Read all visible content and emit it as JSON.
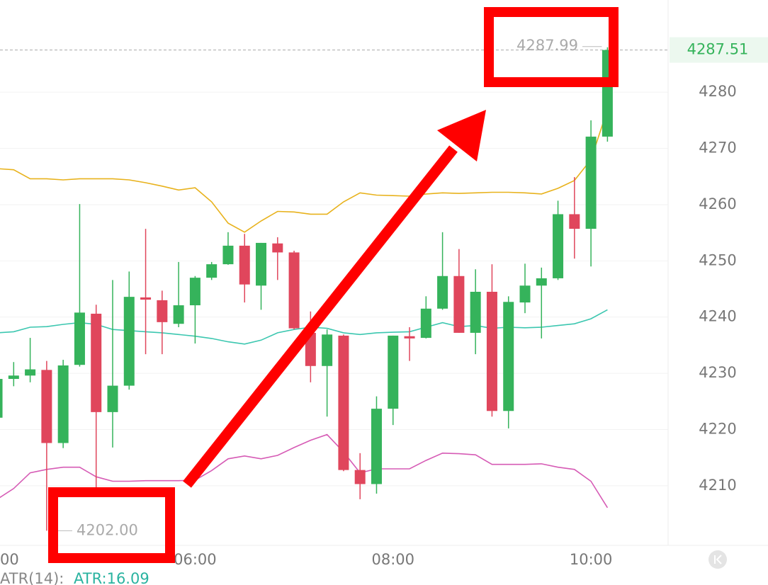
{
  "chart_data": {
    "type": "candlestick",
    "categories": [
      "00",
      null,
      null,
      null,
      null,
      null,
      null,
      null,
      null,
      null,
      null,
      null,
      "06:00",
      null,
      null,
      null,
      null,
      null,
      null,
      null,
      null,
      null,
      null,
      null,
      "08:00",
      null,
      null,
      null,
      null,
      null,
      null,
      null,
      null,
      null,
      null,
      null,
      "10:00",
      null
    ],
    "open": [
      4222.1,
      4229.0,
      4229.6,
      4230.6,
      4217.6,
      4231.5,
      4240.6,
      4223.1,
      4227.8,
      4243.5,
      4243.0,
      4238.8,
      4242.1,
      4247.0,
      4249.4,
      4252.7,
      4245.6,
      4253.1,
      4251.5,
      4237.2,
      4231.3,
      4236.7,
      4212.8,
      4210.3,
      4223.7,
      4236.6,
      4236.3,
      4241.5,
      4247.3,
      4237.2,
      4244.5,
      4223.3,
      4242.6,
      4245.6,
      4246.9,
      4258.3,
      4255.7,
      4272.1
    ],
    "high": [
      4230.5,
      4232.0,
      4236.3,
      4232.2,
      4232.4,
      4260.1,
      4242.2,
      4246.6,
      4248.1,
      4255.7,
      4244.7,
      4249.8,
      4247.3,
      4249.8,
      4255.1,
      4254.8,
      4253.2,
      4254.2,
      4251.8,
      4241.0,
      4237.8,
      4236.9,
      4215.8,
      4225.9,
      4236.7,
      4238.2,
      4243.7,
      4255.1,
      4252.1,
      4248.5,
      4249.4,
      4243.7,
      4249.5,
      4248.8,
      4260.7,
      4264.9,
      4275.0,
      4287.99
    ],
    "low": [
      4221.5,
      4227.7,
      4228.4,
      4202.0,
      4216.7,
      4231.2,
      4209.5,
      4216.8,
      4227.1,
      4233.4,
      4233.4,
      4238.2,
      4235.3,
      4246.6,
      4249.3,
      4242.6,
      4241.3,
      4246.6,
      4237.8,
      4228.4,
      4222.3,
      4212.6,
      4207.6,
      4208.6,
      4220.8,
      4232.2,
      4236.2,
      4241.3,
      4237.2,
      4233.4,
      4222.3,
      4220.2,
      4240.7,
      4236.2,
      4246.6,
      4250.4,
      4249.0,
      4271.2
    ],
    "close": [
      4229.0,
      4229.6,
      4230.7,
      4217.6,
      4231.4,
      4240.8,
      4223.1,
      4227.8,
      4243.6,
      4243.1,
      4239.1,
      4242.1,
      4247.0,
      4249.4,
      4252.7,
      4245.8,
      4253.2,
      4251.5,
      4238.0,
      4231.3,
      4236.9,
      4212.8,
      4210.3,
      4223.7,
      4236.7,
      4236.2,
      4241.5,
      4247.3,
      4237.2,
      4244.5,
      4223.3,
      4242.7,
      4245.6,
      4246.9,
      4258.3,
      4255.7,
      4272.1,
      4287.51
    ],
    "up_color": "#35b35b",
    "down_color": "#e0465c",
    "lines": [
      {
        "color": "#e8b21c",
        "values": [
          4266.4,
          4266.2,
          4264.6,
          4264.6,
          4264.4,
          4264.6,
          4264.6,
          4264.6,
          4264.4,
          4263.9,
          4263.3,
          4262.6,
          4263.0,
          4260.5,
          4256.7,
          4255.1,
          4257.1,
          4258.8,
          4258.7,
          4258.3,
          4258.3,
          4260.5,
          4262.1,
          4261.7,
          4261.6,
          4261.5,
          4261.9,
          4262.1,
          4262.0,
          4262.1,
          4262.2,
          4262.2,
          4262.1,
          4261.9,
          4262.9,
          4264.3,
          4268.0,
          4276.9
        ]
      },
      {
        "color": "#3cc7b0",
        "values": [
          4237.2,
          4237.4,
          4238.2,
          4238.3,
          4238.7,
          4239.0,
          4238.7,
          4237.8,
          4237.6,
          4237.4,
          4237.2,
          4236.9,
          4236.6,
          4236.2,
          4235.6,
          4235.2,
          4235.9,
          4237.2,
          4237.8,
          4238.2,
          4238.0,
          4237.2,
          4236.9,
          4237.2,
          4237.3,
          4237.4,
          4238.2,
          4239.0,
          4238.3,
          4238.5,
          4238.0,
          4238.2,
          4238.1,
          4238.2,
          4238.5,
          4238.8,
          4239.7,
          4241.3
        ]
      },
      {
        "color": "#d65bb5",
        "values": [
          4207.6,
          4209.5,
          4212.3,
          4212.9,
          4213.3,
          4213.3,
          4211.6,
          4210.8,
          4210.8,
          4210.9,
          4210.9,
          4210.9,
          4211.0,
          4212.7,
          4214.8,
          4215.3,
          4214.8,
          4215.4,
          4216.8,
          4218.1,
          4219.1,
          4216.0,
          4212.3,
          4213.0,
          4213.0,
          4213.0,
          4214.5,
          4215.8,
          4215.7,
          4215.5,
          4213.8,
          4213.8,
          4213.8,
          4213.9,
          4213.3,
          4212.9,
          4210.8,
          4206.1
        ]
      }
    ],
    "high_label": {
      "value": 4287.99,
      "label": "4287.99"
    },
    "low_label": {
      "value": 4202.0,
      "label": "4202.00"
    },
    "ylim": [
      4199.4,
      4296.4
    ],
    "yticks": [
      4210,
      4220,
      4230,
      4240,
      4250,
      4260,
      4270,
      4280
    ],
    "grid": true,
    "indicator": {
      "name": "ATR(14):",
      "value": "ATR:16.09"
    }
  }
}
